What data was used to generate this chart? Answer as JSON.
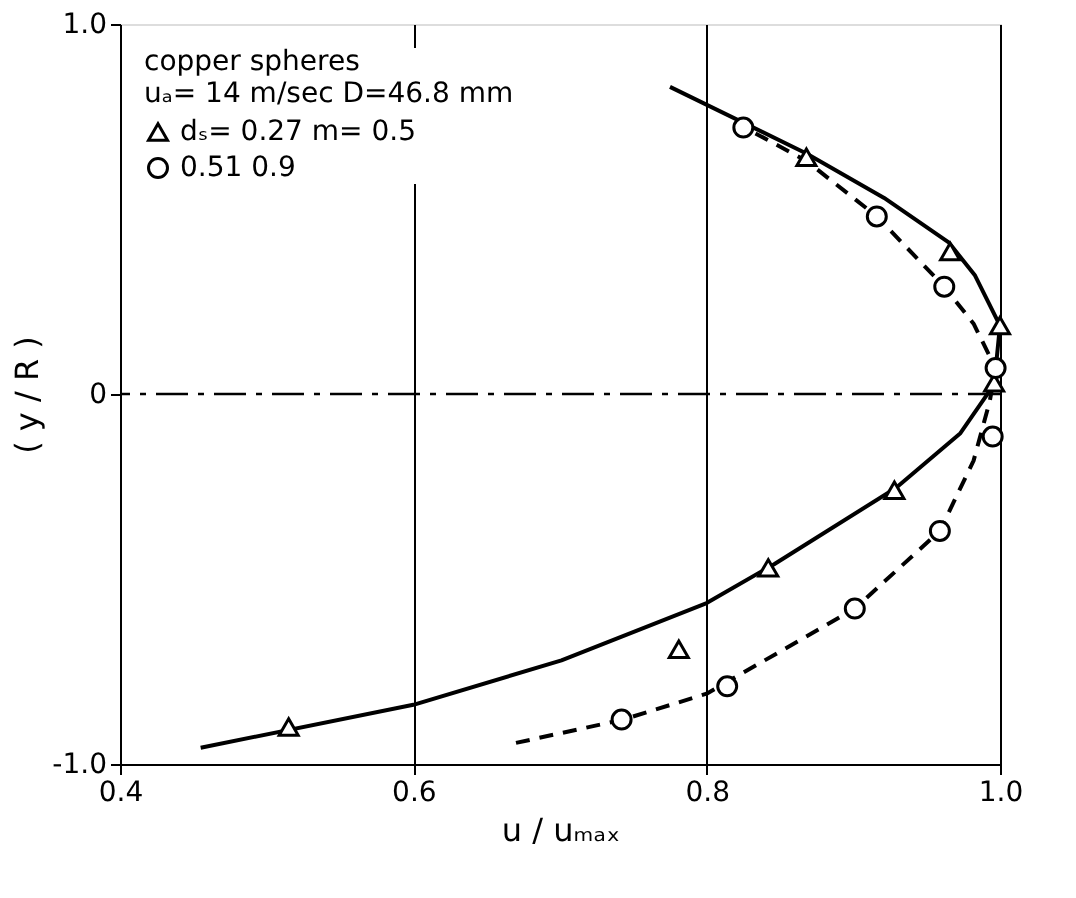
{
  "chart_data": {
    "type": "scatter",
    "xlabel": "u / uₘₐₓ",
    "ylabel": "( y / R )",
    "legend_title": "copper spheres",
    "annotations": [
      "uₐ= 14 m/sec  D=46.8 mm"
    ],
    "xlim": [
      0.4,
      1.0
    ],
    "ylim": [
      -1.0,
      1.0
    ],
    "xticks": [
      0.4,
      0.6,
      0.8,
      {
        "value": 1.0,
        "label": "1.0"
      }
    ],
    "yticks": [
      {
        "value": -1.0,
        "label": "-1.0"
      },
      0,
      {
        "value": 1.0,
        "label": "1.0"
      }
    ],
    "grid": "x",
    "legend": "top left",
    "ref_lines": [
      {
        "axis": "y",
        "value": 0,
        "line_style": "dashed",
        "color": "#000000"
      }
    ],
    "series": [
      {
        "name": "dₛ= 0.27   m= 0.5",
        "marker": "triangle",
        "color": "#000000",
        "x": [
          0.868,
          0.966,
          1.0,
          0.996,
          0.928,
          0.842,
          0.781,
          0.515
        ],
        "values": [
          0.64,
          0.385,
          0.185,
          0.03,
          -0.26,
          -0.47,
          -0.69,
          -0.9
        ]
      },
      {
        "name": "0.51         0.9",
        "marker": "circle",
        "color": "#000000",
        "x": [
          0.825,
          0.916,
          0.962,
          0.997,
          0.995,
          0.959,
          0.901,
          0.814,
          0.742
        ],
        "values": [
          0.72,
          0.48,
          0.29,
          0.07,
          -0.115,
          -0.37,
          -0.58,
          -0.79,
          -0.88
        ]
      },
      {
        "type": "line",
        "line_style": "solid",
        "color": "#000000",
        "x": [
          0.455,
          0.6,
          0.701,
          0.8,
          0.846,
          0.929,
          0.973,
          0.996,
          1.0,
          0.983,
          0.965,
          0.921,
          0.868,
          0.775
        ],
        "values": [
          -0.956,
          -0.84,
          -0.72,
          -0.565,
          -0.46,
          -0.254,
          -0.106,
          0.026,
          0.185,
          0.32,
          0.41,
          0.53,
          0.65,
          0.83
        ]
      },
      {
        "type": "line",
        "line_style": "dashed",
        "color": "#000000",
        "x": [
          0.67,
          0.743,
          0.8,
          0.901,
          0.959,
          0.982,
          0.993,
          0.997,
          0.982,
          0.962,
          0.916,
          0.868,
          0.833
        ],
        "values": [
          -0.943,
          -0.88,
          -0.81,
          -0.58,
          -0.37,
          -0.18,
          -0.02,
          0.07,
          0.19,
          0.29,
          0.48,
          0.63,
          0.705
        ]
      }
    ]
  }
}
